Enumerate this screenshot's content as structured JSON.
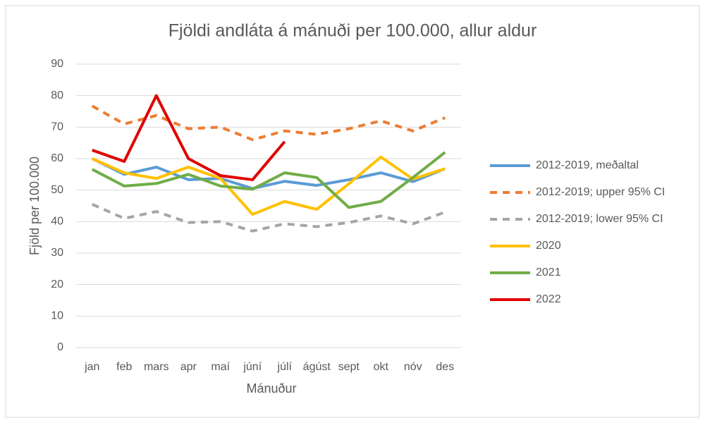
{
  "chart_data": {
    "type": "line",
    "title": "Fjöldi andláta á mánuði per 100.000, allur aldur",
    "x_label": "Mánuður",
    "y_label": "Fjöld per 100.000",
    "categories": [
      "jan",
      "feb",
      "mars",
      "apr",
      "maí",
      "júní",
      "júlí",
      "ágúst",
      "sept",
      "okt",
      "nóv",
      "des"
    ],
    "ylim": [
      0,
      90
    ],
    "yticks": [
      0,
      10,
      20,
      30,
      40,
      50,
      60,
      70,
      80,
      90
    ],
    "grid": true,
    "legend": "right",
    "series": [
      {
        "name": "2012-2019, meðaltal",
        "color": "#5b9bd5",
        "dashed": false,
        "values": [
          60,
          55,
          57.3,
          53.3,
          53.7,
          50.5,
          52.8,
          51.5,
          53.3,
          55.5,
          52.7,
          56.8
        ]
      },
      {
        "name": "2012-2019; upper 95% CI",
        "color": "#ed7d31",
        "dashed": true,
        "values": [
          76.7,
          71,
          73.7,
          69.5,
          70,
          66,
          68.8,
          67.7,
          69.5,
          72,
          68.8,
          73
        ]
      },
      {
        "name": "2012-2019; lower 95% CI",
        "color": "#a5a5a5",
        "dashed": true,
        "values": [
          45.5,
          41,
          43.2,
          39.7,
          40,
          37,
          39.3,
          38.4,
          39.7,
          41.8,
          39.3,
          43
        ]
      },
      {
        "name": "2020",
        "color": "#ffc000",
        "dashed": false,
        "values": [
          60,
          55.5,
          53.7,
          57.3,
          53.7,
          42.3,
          46.4,
          43.9,
          52,
          60.5,
          53.5,
          56.8
        ]
      },
      {
        "name": "2021",
        "color": "#70ad47",
        "dashed": false,
        "values": [
          56.6,
          51.3,
          52.1,
          55,
          51.3,
          50.3,
          55.5,
          54,
          44.5,
          46.4,
          54,
          62
        ]
      },
      {
        "name": "2022",
        "color": "#e00000",
        "dashed": false,
        "values": [
          62.7,
          59.1,
          80,
          60,
          54.6,
          53.3,
          65.4,
          null,
          null,
          null,
          null,
          null
        ]
      }
    ]
  }
}
